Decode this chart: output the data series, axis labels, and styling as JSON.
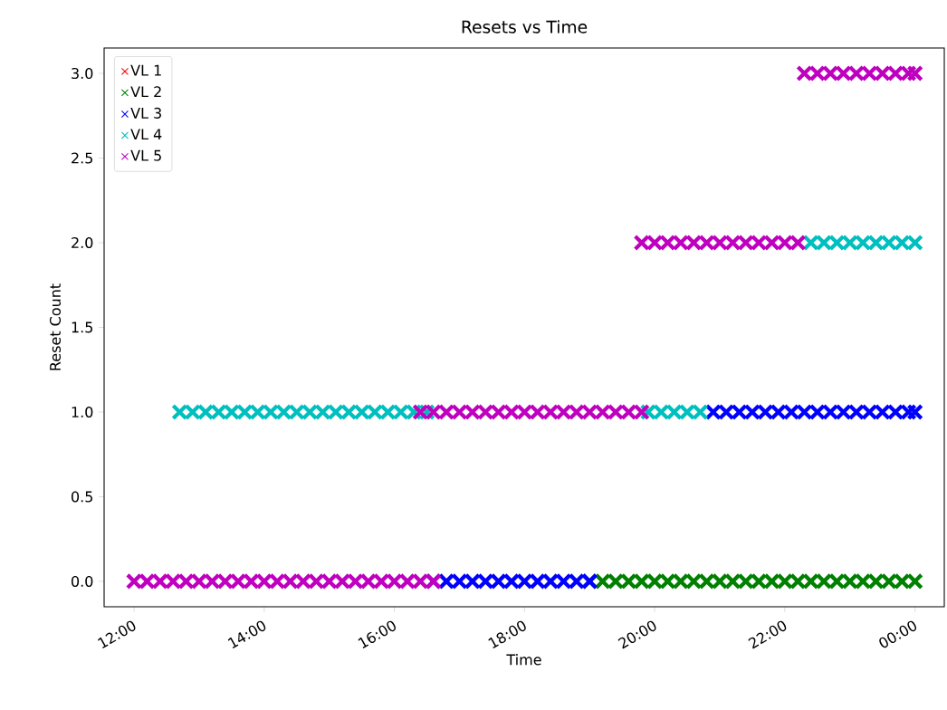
{
  "chart_data": {
    "type": "scatter",
    "title": "Resets vs Time",
    "xlabel": "Time",
    "ylabel": "Reset Count",
    "xlim": [
      11.54,
      24.45
    ],
    "ylim": [
      -0.15,
      3.15
    ],
    "xticks": [
      {
        "value": 12,
        "label": "12:00"
      },
      {
        "value": 14,
        "label": "14:00"
      },
      {
        "value": 16,
        "label": "16:00"
      },
      {
        "value": 18,
        "label": "18:00"
      },
      {
        "value": 20,
        "label": "20:00"
      },
      {
        "value": 22,
        "label": "22:00"
      },
      {
        "value": 24,
        "label": "00:00"
      }
    ],
    "yticks": [
      {
        "value": 0,
        "label": "0.0"
      },
      {
        "value": 0.5,
        "label": "0.5"
      },
      {
        "value": 1,
        "label": "1.0"
      },
      {
        "value": 1.5,
        "label": "1.5"
      },
      {
        "value": 2,
        "label": "2.0"
      },
      {
        "value": 2.5,
        "label": "2.5"
      },
      {
        "value": 3,
        "label": "3.0"
      }
    ],
    "legend": "top left",
    "marker": "cross",
    "series": [
      {
        "name": "VL 1",
        "color": "#ff0000"
      },
      {
        "name": "VL 2",
        "color": "#008000",
        "x": [
          19.0,
          19.2,
          19.4,
          19.6,
          19.8,
          20.0,
          20.2,
          20.4,
          20.6,
          20.8,
          21.0,
          21.2,
          21.4,
          21.6,
          21.8,
          22.0,
          22.2,
          22.4,
          22.6,
          22.8,
          23.0,
          23.2,
          23.4,
          23.6,
          23.8,
          24.0
        ],
        "values": [
          0,
          0,
          0,
          0,
          0,
          0,
          0,
          0,
          0,
          0,
          0,
          0,
          0,
          0,
          0,
          0,
          0,
          0,
          0,
          0,
          0,
          0,
          0,
          0,
          0,
          0
        ]
      },
      {
        "name": "VL 3",
        "color": "#0000ff",
        "x": [
          16.6,
          16.8,
          17.0,
          17.2,
          17.4,
          17.6,
          17.8,
          18.0,
          18.2,
          18.4,
          18.6,
          18.8,
          19.0,
          20.9,
          21.1,
          21.3,
          21.5,
          21.7,
          21.9,
          22.1,
          22.3,
          22.5,
          22.7,
          22.9,
          23.1,
          23.3,
          23.5,
          23.7,
          23.9,
          24.0
        ],
        "values": [
          0,
          0,
          0,
          0,
          0,
          0,
          0,
          0,
          0,
          0,
          0,
          0,
          0,
          1,
          1,
          1,
          1,
          1,
          1,
          1,
          1,
          1,
          1,
          1,
          1,
          1,
          1,
          1,
          1,
          1
        ]
      },
      {
        "name": "VL 4",
        "color": "#00bfbf",
        "x": [
          12.7,
          12.9,
          13.1,
          13.3,
          13.5,
          13.7,
          13.9,
          14.1,
          14.3,
          14.5,
          14.7,
          14.9,
          15.1,
          15.3,
          15.5,
          15.7,
          15.9,
          16.1,
          16.3,
          16.5,
          19.9,
          20.1,
          20.3,
          20.5,
          20.7,
          22.4,
          22.6,
          22.8,
          23.0,
          23.2,
          23.4,
          23.6,
          23.8,
          24.0
        ],
        "values": [
          1,
          1,
          1,
          1,
          1,
          1,
          1,
          1,
          1,
          1,
          1,
          1,
          1,
          1,
          1,
          1,
          1,
          1,
          1,
          1,
          1,
          1,
          1,
          1,
          1,
          2,
          2,
          2,
          2,
          2,
          2,
          2,
          2,
          2
        ]
      },
      {
        "name": "VL 5",
        "color": "#bf00bf",
        "x": [
          12.0,
          12.2,
          12.4,
          12.6,
          12.8,
          13.0,
          13.2,
          13.4,
          13.6,
          13.8,
          14.0,
          14.2,
          14.4,
          14.6,
          14.8,
          15.0,
          15.2,
          15.4,
          15.6,
          15.8,
          16.0,
          16.2,
          16.4,
          16.6,
          16.4,
          16.6,
          16.8,
          17.0,
          17.2,
          17.4,
          17.6,
          17.8,
          18.0,
          18.2,
          18.4,
          18.6,
          18.8,
          19.0,
          19.2,
          19.4,
          19.6,
          19.8,
          19.8,
          20.0,
          20.2,
          20.4,
          20.6,
          20.8,
          21.0,
          21.2,
          21.4,
          21.6,
          21.8,
          22.0,
          22.2,
          22.3,
          22.5,
          22.7,
          22.9,
          23.1,
          23.3,
          23.5,
          23.7,
          23.9,
          24.0
        ],
        "values": [
          0,
          0,
          0,
          0,
          0,
          0,
          0,
          0,
          0,
          0,
          0,
          0,
          0,
          0,
          0,
          0,
          0,
          0,
          0,
          0,
          0,
          0,
          0,
          0,
          1,
          1,
          1,
          1,
          1,
          1,
          1,
          1,
          1,
          1,
          1,
          1,
          1,
          1,
          1,
          1,
          1,
          1,
          2,
          2,
          2,
          2,
          2,
          2,
          2,
          2,
          2,
          2,
          2,
          2,
          2,
          3,
          3,
          3,
          3,
          3,
          3,
          3,
          3,
          3,
          3
        ]
      }
    ]
  }
}
